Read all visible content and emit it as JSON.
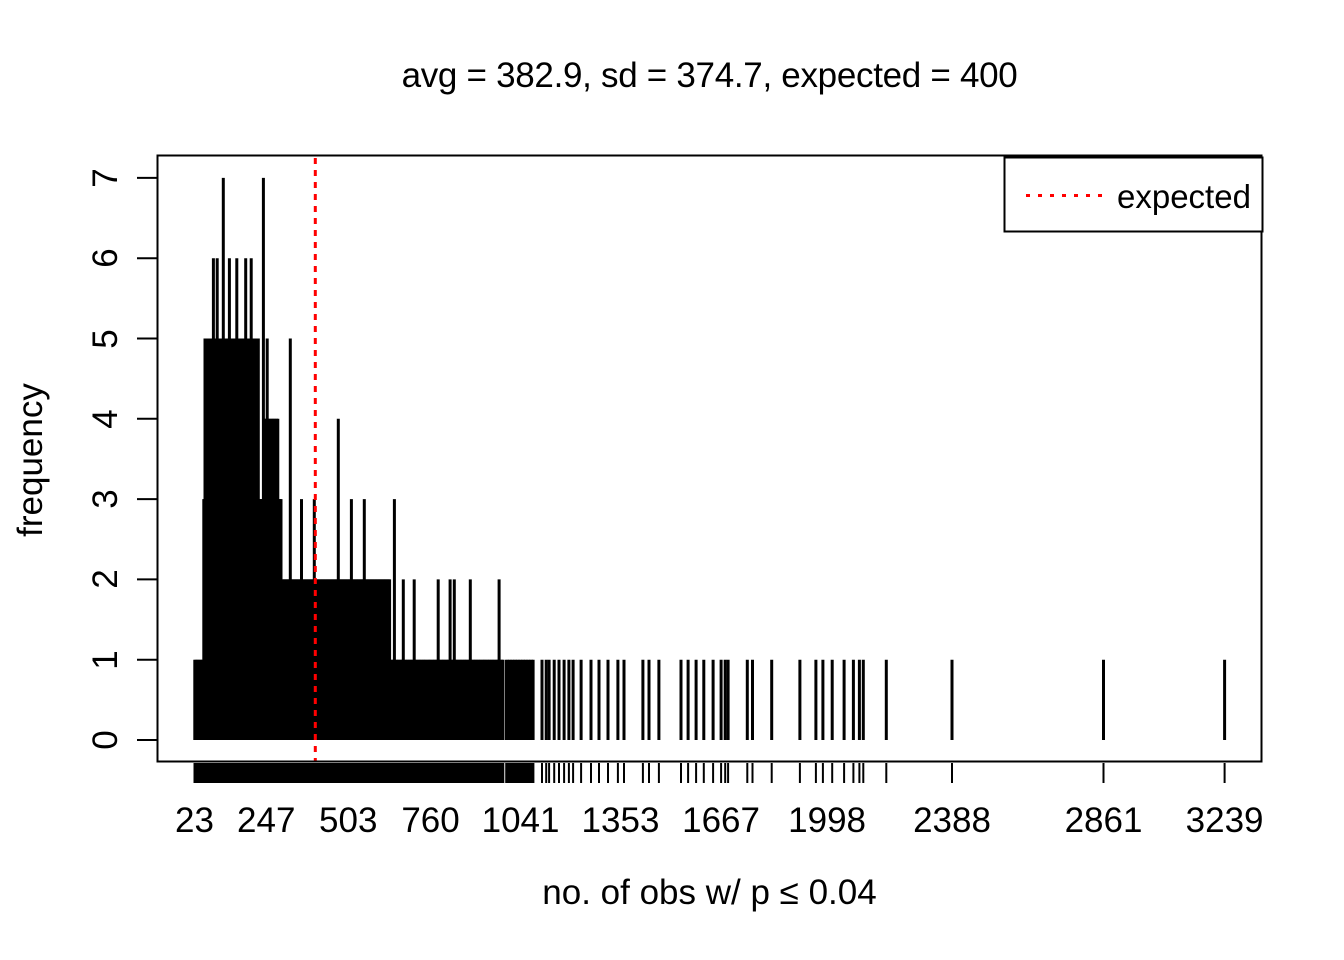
{
  "figure": {
    "title": "avg = 382.9, sd = 374.7, expected = 400",
    "xlabel": "no. of obs w/ p ≤ 0.04",
    "ylabel": "frequency"
  },
  "legend": {
    "label": "expected",
    "position": "top-right",
    "line_color": "#FF0000",
    "line_style": "dotted"
  },
  "chart_data": {
    "type": "bar",
    "subtype": "frequency spike plot (R plot type='h') with rug marks on x-axis",
    "title": "avg = 382.9, sd = 374.7, expected = 400",
    "xlabel": "no. of obs w/ p ≤ 0.04",
    "ylabel": "frequency",
    "stats": {
      "avg": 382.9,
      "sd": 374.7,
      "expected": 400
    },
    "x_tick_labels": [
      23,
      247,
      503,
      760,
      1041,
      1353,
      1667,
      1998,
      2388,
      2861,
      3239
    ],
    "y_tick_labels": [
      0,
      1,
      2,
      3,
      4,
      5,
      6,
      7
    ],
    "x_data_range": [
      23,
      3239
    ],
    "ylim": [
      0,
      7
    ],
    "grid": false,
    "rug": true,
    "colors": {
      "spike": "#000000",
      "expected_line": "#FF0000",
      "background": "#FFFFFF"
    },
    "expected_line": {
      "x": 400,
      "color": "#FF0000",
      "style": "dotted",
      "label": "expected"
    },
    "dense_bands": [
      {
        "from": 23,
        "to": 990,
        "step": 4,
        "freq": 1
      },
      {
        "from": 996,
        "to": 1085,
        "step": 5,
        "freq": 1
      },
      {
        "from": 294,
        "to": 633,
        "step": 3,
        "freq": 2
      },
      {
        "from": 51,
        "to": 294,
        "step": 3,
        "freq": 3
      },
      {
        "from": 240,
        "to": 285,
        "step": 4,
        "freq": 4
      },
      {
        "from": 55,
        "to": 225,
        "step": 4,
        "freq": 5
      }
    ],
    "spikes": [
      [
        113,
        7
      ],
      [
        238,
        7
      ],
      [
        82,
        6
      ],
      [
        94,
        6
      ],
      [
        132,
        6
      ],
      [
        155,
        6
      ],
      [
        183,
        6
      ],
      [
        200,
        6
      ],
      [
        250,
        5
      ],
      [
        322,
        5
      ],
      [
        472,
        4
      ],
      [
        357,
        3
      ],
      [
        397,
        3
      ],
      [
        513,
        3
      ],
      [
        553,
        3
      ],
      [
        647,
        3
      ],
      [
        675,
        2
      ],
      [
        709,
        2
      ],
      [
        784,
        2
      ],
      [
        821,
        2
      ],
      [
        834,
        2
      ],
      [
        884,
        2
      ],
      [
        974,
        2
      ],
      [
        1108,
        1
      ],
      [
        1121,
        1
      ],
      [
        1130,
        1
      ],
      [
        1146,
        1
      ],
      [
        1161,
        1
      ],
      [
        1177,
        1
      ],
      [
        1192,
        1
      ],
      [
        1205,
        1
      ],
      [
        1230,
        1
      ],
      [
        1261,
        1
      ],
      [
        1286,
        1
      ],
      [
        1314,
        1
      ],
      [
        1345,
        1
      ],
      [
        1364,
        1
      ],
      [
        1423,
        1
      ],
      [
        1442,
        1
      ],
      [
        1473,
        1
      ],
      [
        1542,
        1
      ],
      [
        1564,
        1
      ],
      [
        1589,
        1
      ],
      [
        1613,
        1
      ],
      [
        1642,
        1
      ],
      [
        1667,
        1
      ],
      [
        1680,
        1
      ],
      [
        1689,
        1
      ],
      [
        1749,
        1
      ],
      [
        1765,
        1
      ],
      [
        1825,
        1
      ],
      [
        1913,
        1
      ],
      [
        1963,
        1
      ],
      [
        1985,
        1
      ],
      [
        2014,
        1
      ],
      [
        2051,
        1
      ],
      [
        2080,
        1
      ],
      [
        2099,
        1
      ],
      [
        2111,
        1
      ],
      [
        2183,
        1
      ],
      [
        2388,
        1
      ],
      [
        2861,
        1
      ],
      [
        3239,
        1
      ]
    ]
  }
}
